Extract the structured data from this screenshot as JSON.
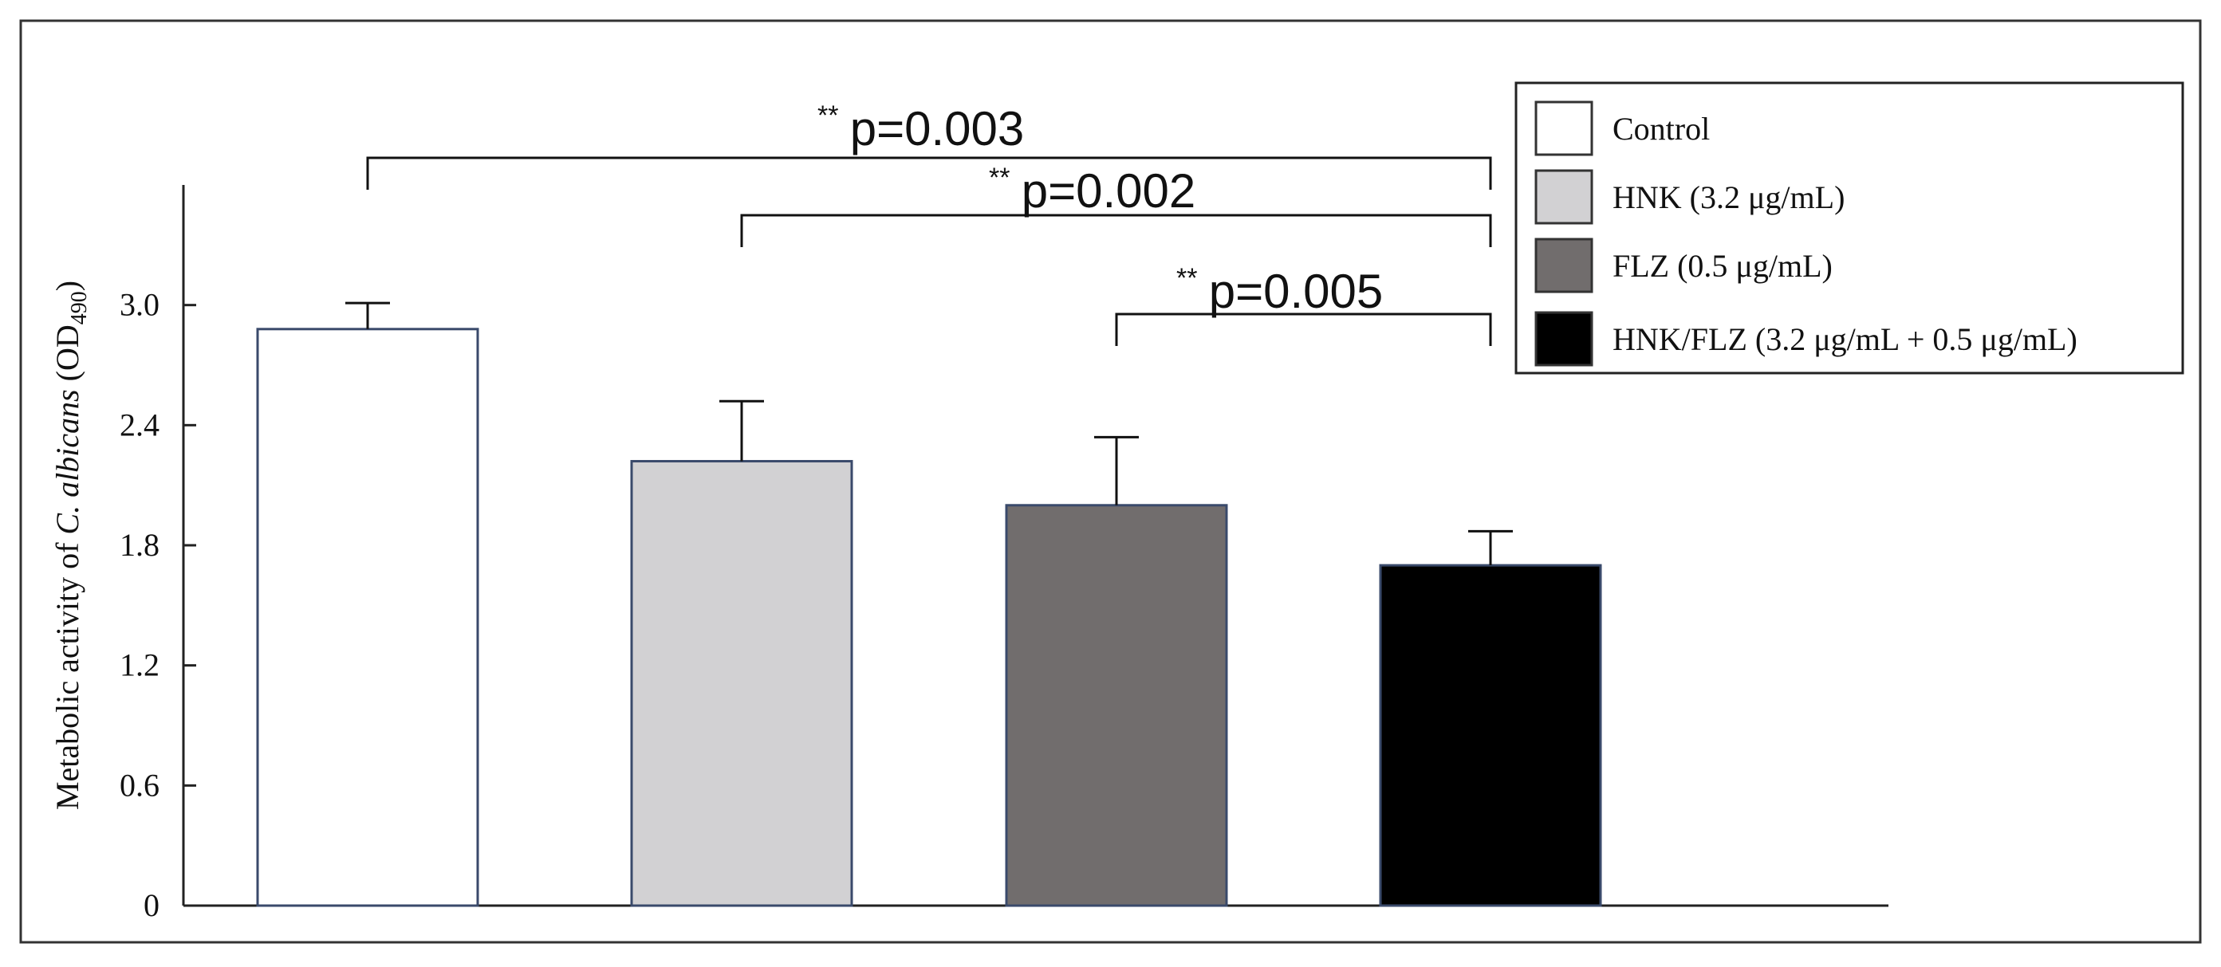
{
  "chart_data": {
    "type": "bar",
    "categories": [
      "Control",
      "HNK (3.2 μg/mL)",
      "FLZ (0.5 μg/mL)",
      "HNK/FLZ (3.2 μg/mL + 0.5 μg/mL)"
    ],
    "values": [
      2.88,
      2.22,
      2.0,
      1.7
    ],
    "errors": [
      0.13,
      0.3,
      0.34,
      0.17
    ],
    "fill_colors": [
      "#ffffff",
      "#d2d1d3",
      "#716d6d",
      "#000000"
    ],
    "ylabel": {
      "prefix": "Metabolic activity of ",
      "italic": "C. albicans",
      "suffix": " (OD",
      "subscript": "490",
      "end": ")"
    },
    "ylim": [
      0,
      3.6
    ],
    "yticks": [
      "0",
      "0.6",
      "1.2",
      "1.8",
      "2.4",
      "3.0"
    ],
    "ytick_values": [
      0,
      0.6,
      1.2,
      1.8,
      2.4,
      3.0
    ],
    "legend": {
      "position": "top-right",
      "entries": [
        "Control",
        "HNK (3.2 μg/mL)",
        "FLZ (0.5 μg/mL)",
        "HNK/FLZ (3.2 μg/mL + 0.5 μg/mL)"
      ]
    },
    "significance": [
      {
        "from": 0,
        "to": 3,
        "stars": "**",
        "label": "p=0.003"
      },
      {
        "from": 1,
        "to": 3,
        "stars": "**",
        "label": "p=0.002"
      },
      {
        "from": 2,
        "to": 3,
        "stars": "**",
        "label": "p=0.005"
      }
    ],
    "grid": false
  },
  "colors": {
    "axis": "#222222",
    "bar_edge": "#3a4a6b",
    "frame": "#333333"
  }
}
